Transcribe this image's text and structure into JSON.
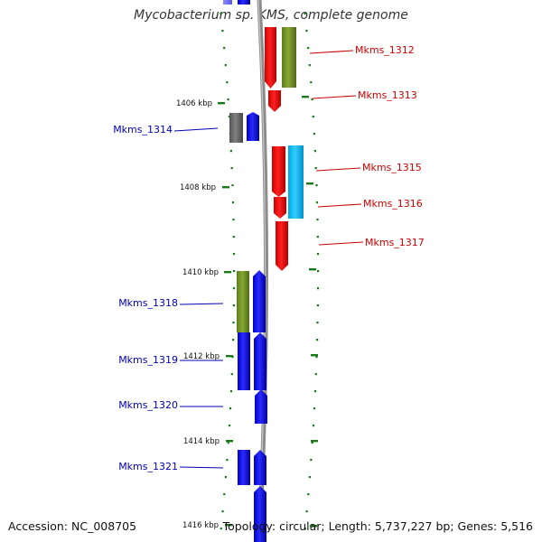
{
  "title": "Mycobacterium sp. KMS, complete genome",
  "footer": {
    "accession": "Accession: NC_008705",
    "summary": "Topology: circular; Length: 5,737,227 bp; Genes: 5,516"
  },
  "colors": {
    "blue": "#0000ee",
    "red": "#ee0000",
    "olive": "#6b8e23",
    "gray": "#666666",
    "cyan": "#00bfff",
    "tick": "#1a7a1a",
    "backbone": "#8c8c8c",
    "label_blue": "#0000b4",
    "label_red": "#cc0000"
  },
  "scale": {
    "unit": "kbp",
    "ticks": [
      {
        "kbp": 1406,
        "label": "1406 kbp"
      },
      {
        "kbp": 1408,
        "label": "1408 kbp"
      },
      {
        "kbp": 1410,
        "label": "1410 kbp"
      },
      {
        "kbp": 1412,
        "label": "1412 kbp"
      },
      {
        "kbp": 1414,
        "label": "1414 kbp"
      },
      {
        "kbp": 1416,
        "label": "1416 kbp"
      }
    ]
  },
  "gene_labels": [
    {
      "id": "Mkms_1312",
      "label": "Mkms_1312",
      "strand": "forward"
    },
    {
      "id": "Mkms_1313",
      "label": "Mkms_1313",
      "strand": "forward"
    },
    {
      "id": "Mkms_1314",
      "label": "Mkms_1314",
      "strand": "reverse"
    },
    {
      "id": "Mkms_1315",
      "label": "Mkms_1315",
      "strand": "forward"
    },
    {
      "id": "Mkms_1316",
      "label": "Mkms_1316",
      "strand": "forward"
    },
    {
      "id": "Mkms_1317",
      "label": "Mkms_1317",
      "strand": "forward"
    },
    {
      "id": "Mkms_1318",
      "label": "Mkms_1318",
      "strand": "reverse"
    },
    {
      "id": "Mkms_1319",
      "label": "Mkms_1319",
      "strand": "reverse"
    },
    {
      "id": "Mkms_1320",
      "label": "Mkms_1320",
      "strand": "reverse"
    },
    {
      "id": "Mkms_1321",
      "label": "Mkms_1321",
      "strand": "reverse"
    }
  ]
}
